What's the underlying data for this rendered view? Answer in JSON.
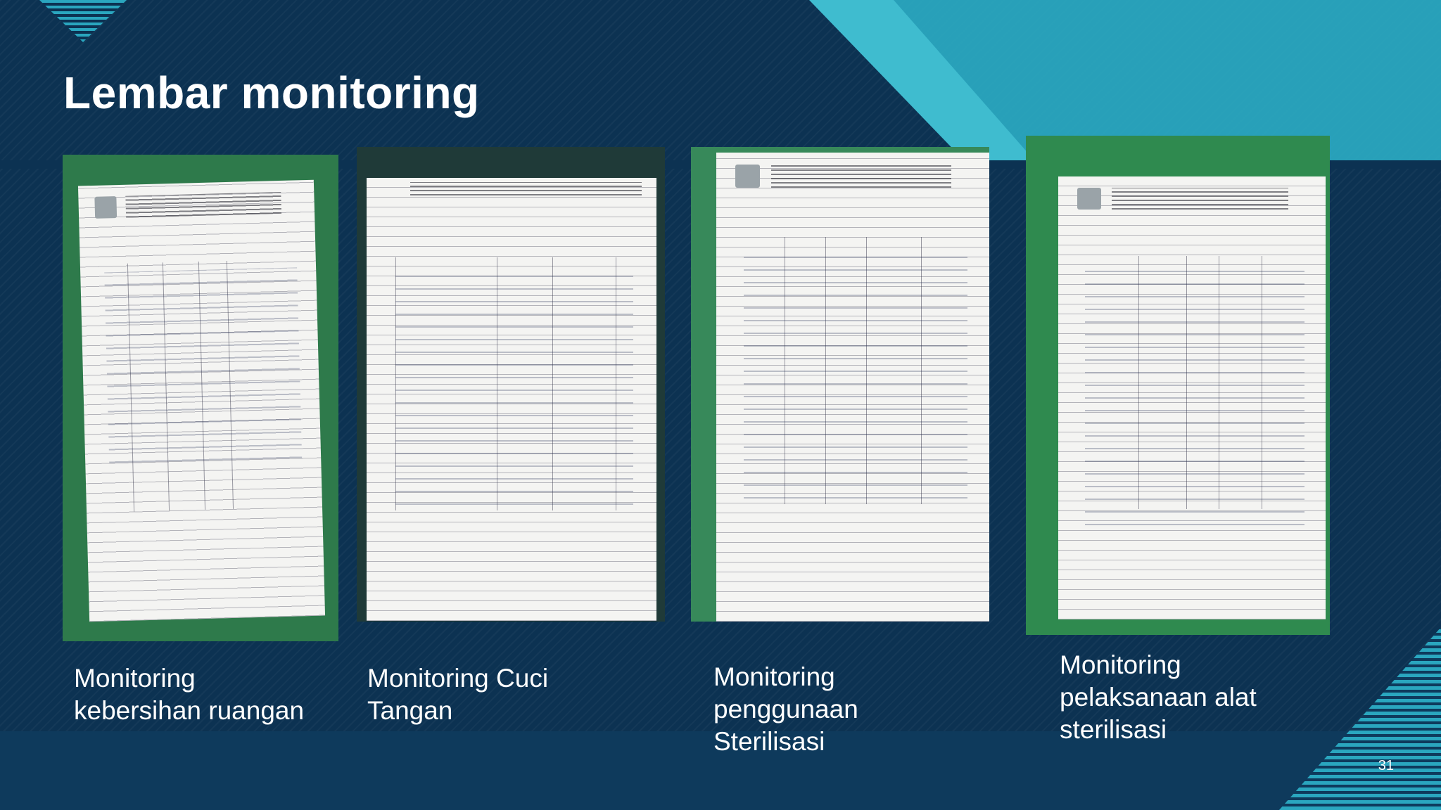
{
  "slide": {
    "title": "Lembar monitoring",
    "page_number": "31"
  },
  "panels": [
    {
      "caption": "Monitoring\nkebersihan ruangan",
      "image": "monitoring-form-photo"
    },
    {
      "caption": "Monitoring Cuci\nTangan",
      "image": "monitoring-form-photo"
    },
    {
      "caption": "Monitoring\npenggunaan\nSterilisasi",
      "image": "monitoring-form-photo"
    },
    {
      "caption": "Monitoring\npelaksanaan alat\nsterilisasi",
      "image": "monitoring-form-photo"
    }
  ],
  "colors": {
    "background": "#0c3252",
    "accent": "#2aa6bf",
    "text": "#ffffff"
  }
}
